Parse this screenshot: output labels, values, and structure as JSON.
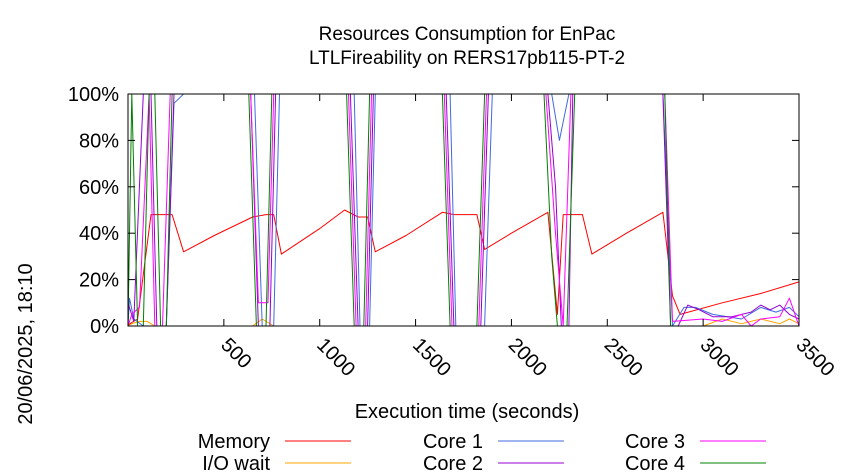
{
  "chart_data": {
    "type": "line",
    "title": "Resources Consumption for EnPac",
    "subtitle": "LTLFireability on RERS17pb115-PT-2",
    "xlabel": "Execution time (seconds)",
    "ylabel": "",
    "side_label": "20/06/2025, 18:10",
    "xlim": [
      0,
      3500
    ],
    "ylim": [
      0,
      100
    ],
    "x_ticks": [
      500,
      1000,
      1500,
      2000,
      2500,
      3000,
      3500
    ],
    "y_ticks": [
      {
        "value": 0,
        "label": "0%"
      },
      {
        "value": 20,
        "label": "20%"
      },
      {
        "value": 40,
        "label": "40%"
      },
      {
        "value": 60,
        "label": "60%"
      },
      {
        "value": 80,
        "label": "80%"
      },
      {
        "value": 100,
        "label": "100%"
      }
    ],
    "legend_placement": "bottom",
    "series": [
      {
        "name": "Memory",
        "color": "#ff0000",
        "legend_col": 0,
        "legend_row": 0,
        "points": [
          [
            0,
            0
          ],
          [
            10,
            1
          ],
          [
            50,
            3
          ],
          [
            120,
            48
          ],
          [
            230,
            48
          ],
          [
            290,
            32
          ],
          [
            450,
            39
          ],
          [
            650,
            47
          ],
          [
            720,
            48
          ],
          [
            760,
            48
          ],
          [
            800,
            31
          ],
          [
            1000,
            42
          ],
          [
            1130,
            50
          ],
          [
            1200,
            47
          ],
          [
            1250,
            47
          ],
          [
            1290,
            32
          ],
          [
            1450,
            39
          ],
          [
            1640,
            49
          ],
          [
            1700,
            48
          ],
          [
            1820,
            48
          ],
          [
            1860,
            33
          ],
          [
            2000,
            40
          ],
          [
            2190,
            49
          ],
          [
            2240,
            5
          ],
          [
            2270,
            48
          ],
          [
            2370,
            48
          ],
          [
            2420,
            31
          ],
          [
            2600,
            40
          ],
          [
            2790,
            49
          ],
          [
            2840,
            13
          ],
          [
            2880,
            5
          ],
          [
            3100,
            10
          ],
          [
            3300,
            14
          ],
          [
            3500,
            19
          ]
        ]
      },
      {
        "name": "I/O wait",
        "color": "#ffa500",
        "legend_col": 0,
        "legend_row": 1,
        "points": [
          [
            0,
            0
          ],
          [
            20,
            1
          ],
          [
            60,
            2
          ],
          [
            100,
            2
          ],
          [
            140,
            0
          ],
          [
            650,
            0
          ],
          [
            700,
            3
          ],
          [
            760,
            0
          ],
          [
            2800,
            0
          ],
          [
            3000,
            0
          ],
          [
            3100,
            3
          ],
          [
            3200,
            1
          ],
          [
            3300,
            3
          ],
          [
            3400,
            1
          ],
          [
            3450,
            3
          ],
          [
            3500,
            1
          ]
        ]
      },
      {
        "name": "Core 1",
        "color": "#4169e1",
        "legend_col": 1,
        "legend_row": 0,
        "points": [
          [
            0,
            0
          ],
          [
            8,
            12
          ],
          [
            30,
            3
          ],
          [
            80,
            0
          ],
          [
            200,
            0
          ],
          [
            240,
            96
          ],
          [
            290,
            100
          ],
          [
            660,
            100
          ],
          [
            700,
            0
          ],
          [
            760,
            0
          ],
          [
            790,
            100
          ],
          [
            1180,
            100
          ],
          [
            1210,
            0
          ],
          [
            1260,
            0
          ],
          [
            1290,
            100
          ],
          [
            1680,
            100
          ],
          [
            1710,
            0
          ],
          [
            1860,
            0
          ],
          [
            1900,
            100
          ],
          [
            2210,
            100
          ],
          [
            2250,
            80
          ],
          [
            2300,
            100
          ],
          [
            2790,
            100
          ],
          [
            2840,
            0
          ],
          [
            2900,
            8
          ],
          [
            2960,
            8
          ],
          [
            3050,
            5
          ],
          [
            3200,
            3
          ],
          [
            3300,
            8
          ],
          [
            3380,
            6
          ],
          [
            3450,
            8
          ],
          [
            3500,
            4
          ]
        ]
      },
      {
        "name": "Core 2",
        "color": "#9400d3",
        "legend_col": 1,
        "legend_row": 1,
        "points": [
          [
            0,
            10
          ],
          [
            30,
            2
          ],
          [
            80,
            100
          ],
          [
            120,
            100
          ],
          [
            150,
            0
          ],
          [
            200,
            0
          ],
          [
            240,
            100
          ],
          [
            640,
            100
          ],
          [
            680,
            0
          ],
          [
            740,
            0
          ],
          [
            770,
            100
          ],
          [
            1160,
            100
          ],
          [
            1200,
            0
          ],
          [
            1250,
            0
          ],
          [
            1280,
            100
          ],
          [
            1660,
            100
          ],
          [
            1700,
            0
          ],
          [
            1840,
            0
          ],
          [
            1880,
            100
          ],
          [
            2190,
            100
          ],
          [
            2230,
            60
          ],
          [
            2260,
            0
          ],
          [
            2300,
            0
          ],
          [
            2320,
            100
          ],
          [
            2790,
            100
          ],
          [
            2830,
            0
          ],
          [
            2870,
            0
          ],
          [
            2920,
            9
          ],
          [
            2980,
            7
          ],
          [
            3050,
            4
          ],
          [
            3150,
            4
          ],
          [
            3250,
            6
          ],
          [
            3300,
            9
          ],
          [
            3350,
            7
          ],
          [
            3400,
            9
          ],
          [
            3450,
            5
          ],
          [
            3500,
            3
          ]
        ]
      },
      {
        "name": "Core 3",
        "color": "#ff00ff",
        "legend_col": 2,
        "legend_row": 0,
        "points": [
          [
            0,
            0
          ],
          [
            20,
            5
          ],
          [
            60,
            8
          ],
          [
            110,
            100
          ],
          [
            140,
            0
          ],
          [
            180,
            0
          ],
          [
            220,
            100
          ],
          [
            640,
            100
          ],
          [
            680,
            10
          ],
          [
            730,
            10
          ],
          [
            760,
            100
          ],
          [
            1150,
            100
          ],
          [
            1190,
            0
          ],
          [
            1240,
            0
          ],
          [
            1270,
            100
          ],
          [
            1650,
            100
          ],
          [
            1690,
            0
          ],
          [
            1830,
            0
          ],
          [
            1870,
            100
          ],
          [
            2180,
            100
          ],
          [
            2230,
            40
          ],
          [
            2270,
            0
          ],
          [
            2310,
            100
          ],
          [
            2800,
            100
          ],
          [
            2840,
            2
          ],
          [
            3000,
            3
          ],
          [
            3100,
            2
          ],
          [
            3200,
            5
          ],
          [
            3250,
            0
          ],
          [
            3300,
            3
          ],
          [
            3400,
            4
          ],
          [
            3450,
            12
          ],
          [
            3500,
            0
          ]
        ]
      },
      {
        "name": "Core 4",
        "color": "#008000",
        "legend_col": 2,
        "legend_row": 1,
        "points": [
          [
            0,
            0
          ],
          [
            20,
            100
          ],
          [
            50,
            0
          ],
          [
            80,
            0
          ],
          [
            110,
            100
          ],
          [
            140,
            100
          ],
          [
            170,
            0
          ],
          [
            200,
            0
          ],
          [
            230,
            100
          ],
          [
            630,
            100
          ],
          [
            670,
            0
          ],
          [
            720,
            0
          ],
          [
            750,
            100
          ],
          [
            1140,
            100
          ],
          [
            1180,
            0
          ],
          [
            1230,
            0
          ],
          [
            1260,
            100
          ],
          [
            1640,
            100
          ],
          [
            1680,
            0
          ],
          [
            1820,
            0
          ],
          [
            1860,
            100
          ],
          [
            2170,
            100
          ],
          [
            2210,
            30
          ],
          [
            2240,
            0
          ],
          [
            2290,
            0
          ],
          [
            2330,
            100
          ],
          [
            2800,
            100
          ],
          [
            2830,
            0
          ],
          [
            3500,
            0
          ]
        ]
      }
    ]
  }
}
